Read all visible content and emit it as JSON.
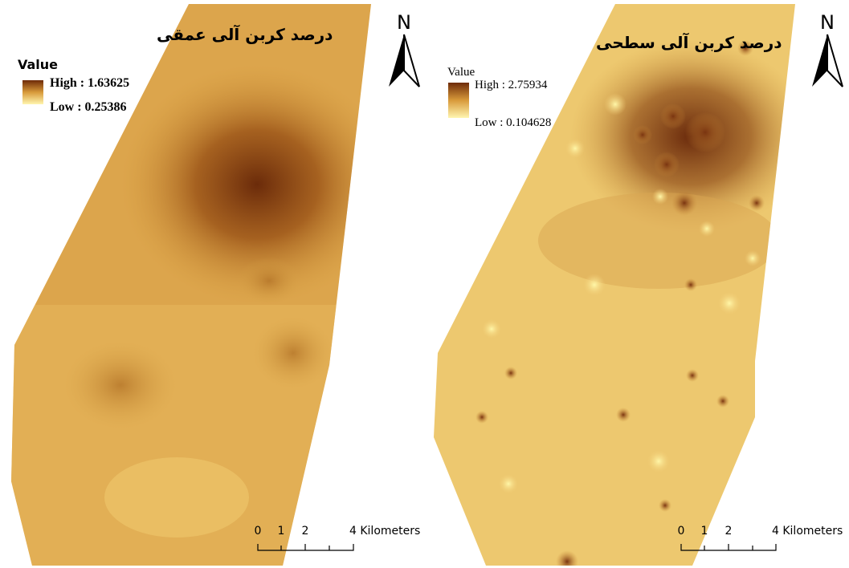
{
  "panels": [
    {
      "title": "درصد کربن آلی عمقی",
      "legend": {
        "title": "Value",
        "high": "High : 1.63625",
        "low": "Low : 0.25386"
      },
      "north": "N",
      "scale_labels": [
        "0",
        "1",
        "2",
        "4 Kilometers"
      ]
    },
    {
      "title": "درصد کربن آلی سطحی",
      "legend": {
        "title": "Value",
        "high": "High : 2.75934",
        "low": "Low : 0.104628"
      },
      "north": "N",
      "scale_labels": [
        "0",
        "1",
        "2",
        "4 Kilometers"
      ]
    }
  ]
}
